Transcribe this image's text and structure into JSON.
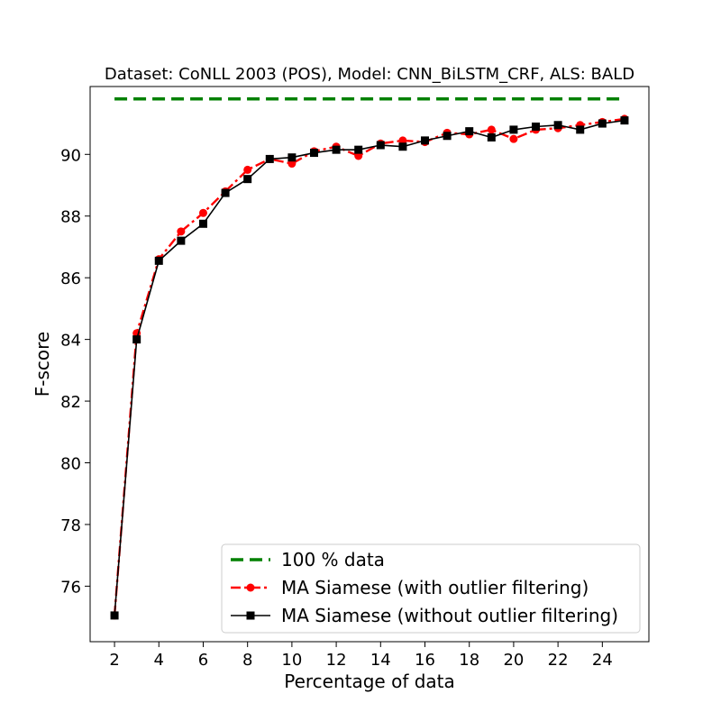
{
  "chart_data": {
    "type": "line",
    "title": "Dataset: CoNLL 2003 (POS), Model: CNN_BiLSTM_CRF, ALS: BALD",
    "xlabel": "Percentage of data",
    "ylabel": "F-score",
    "xlim": [
      0.9,
      26.1
    ],
    "ylim": [
      74.2,
      92.2
    ],
    "xticks": [
      2,
      4,
      6,
      8,
      10,
      12,
      14,
      16,
      18,
      20,
      22,
      24
    ],
    "yticks": [
      76,
      78,
      80,
      82,
      84,
      86,
      88,
      90
    ],
    "grid": false,
    "legend_position": "lower-right",
    "series": [
      {
        "name": "100 % data",
        "color": "#008000",
        "line_style": "dashed",
        "marker": "none",
        "x": [
          2,
          25
        ],
        "y": [
          91.8,
          91.8
        ]
      },
      {
        "name": "MA Siamese (with outlier filtering)",
        "color": "#ff0000",
        "line_style": "dash-dot",
        "marker": "circle",
        "x": [
          2,
          3,
          4,
          5,
          6,
          7,
          8,
          9,
          10,
          11,
          12,
          13,
          14,
          15,
          16,
          17,
          18,
          19,
          20,
          21,
          22,
          23,
          24,
          25
        ],
        "y": [
          75.05,
          84.2,
          86.6,
          87.5,
          88.1,
          88.8,
          89.5,
          89.85,
          89.7,
          90.1,
          90.25,
          89.95,
          90.35,
          90.45,
          90.4,
          90.7,
          90.65,
          90.8,
          90.5,
          90.8,
          90.85,
          90.95,
          91.05,
          91.15
        ]
      },
      {
        "name": "MA Siamese (without outlier filtering)",
        "color": "#000000",
        "line_style": "solid",
        "marker": "square",
        "x": [
          2,
          3,
          4,
          5,
          6,
          7,
          8,
          9,
          10,
          11,
          12,
          13,
          14,
          15,
          16,
          17,
          18,
          19,
          20,
          21,
          22,
          23,
          24,
          25
        ],
        "y": [
          75.05,
          84.0,
          86.55,
          87.2,
          87.75,
          88.75,
          89.2,
          89.85,
          89.9,
          90.05,
          90.15,
          90.15,
          90.3,
          90.25,
          90.45,
          90.6,
          90.75,
          90.55,
          90.8,
          90.9,
          90.95,
          90.8,
          91.0,
          91.1
        ]
      }
    ]
  }
}
